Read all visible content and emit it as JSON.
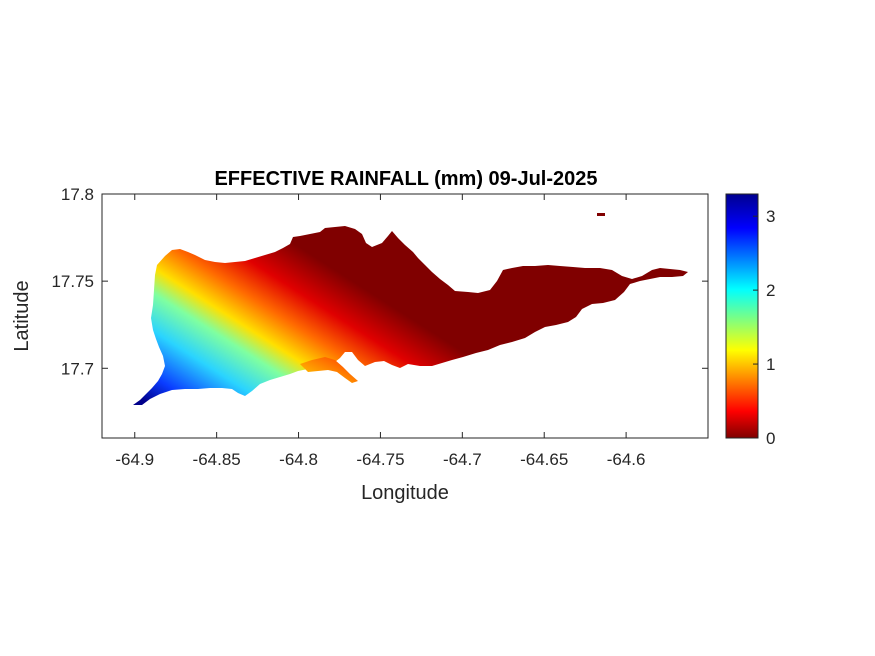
{
  "chart_data": {
    "type": "heatmap",
    "title": "EFFECTIVE RAINFALL (mm) 09-Jul-2025",
    "xlabel": "Longitude",
    "ylabel": "Latitude",
    "xlim": [
      -64.92,
      -64.55
    ],
    "ylim": [
      17.66,
      17.8
    ],
    "x_ticks": [
      -64.9,
      -64.85,
      -64.8,
      -64.75,
      -64.7,
      -64.65,
      -64.6
    ],
    "x_tick_labels": [
      "-64.9",
      "-64.85",
      "-64.8",
      "-64.75",
      "-64.7",
      "-64.65",
      "-64.6"
    ],
    "y_ticks": [
      17.7,
      17.75,
      17.8
    ],
    "y_tick_labels": [
      "17.7",
      "17.75",
      "17.8"
    ],
    "colormap": "jet",
    "colorbar": {
      "range": [
        0,
        3.3
      ],
      "ticks": [
        0,
        1,
        2,
        3
      ],
      "tick_labels": [
        "0",
        "1",
        "2",
        "3"
      ],
      "placement": "right"
    },
    "grid": false,
    "gradient_stops": [
      {
        "lon": -64.9,
        "lat": 17.68,
        "value": 3.2
      },
      {
        "lon": -64.88,
        "lat": 17.7,
        "value": 2.2
      },
      {
        "lon": -64.865,
        "lat": 17.735,
        "value": 1.0
      },
      {
        "lon": -64.87,
        "lat": 17.76,
        "value": 0.4
      },
      {
        "lon": -64.8,
        "lat": 17.7,
        "value": 0.9
      },
      {
        "lon": -64.77,
        "lat": 17.695,
        "value": 1.1
      },
      {
        "lon": -64.8,
        "lat": 17.75,
        "value": 0.0
      },
      {
        "lon": -64.6,
        "lat": 17.75,
        "value": 0.0
      }
    ]
  }
}
